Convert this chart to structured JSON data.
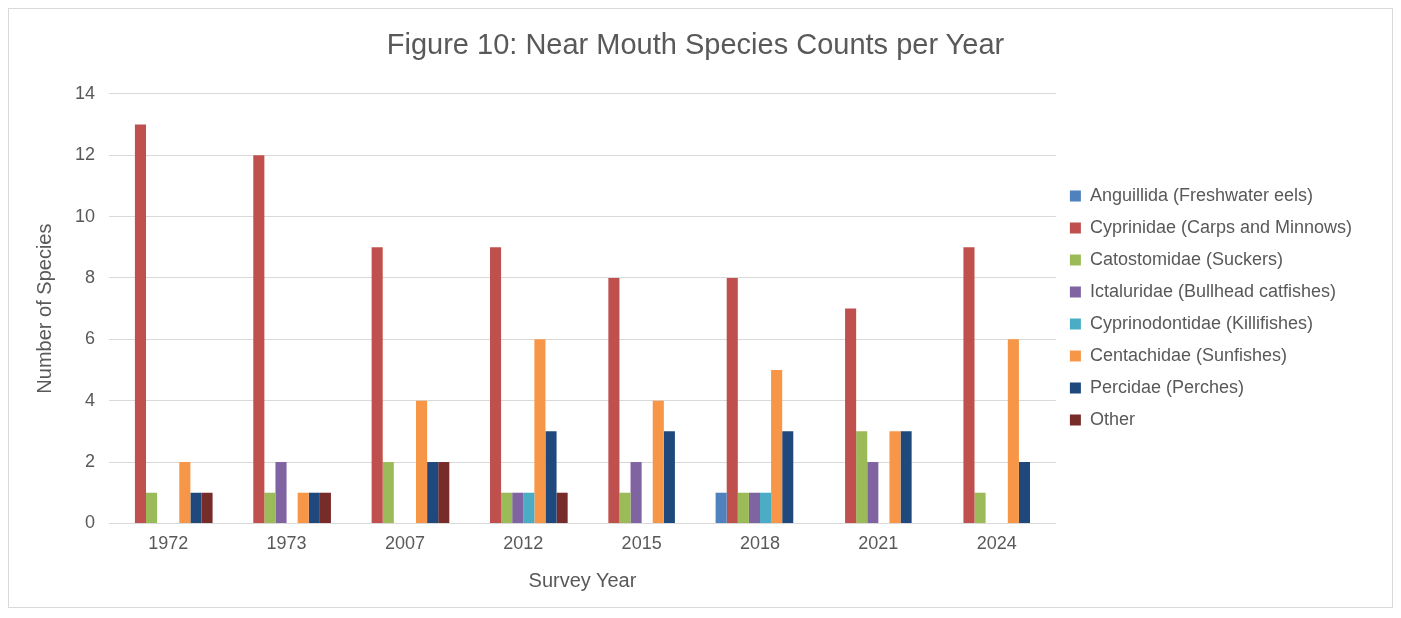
{
  "chart_data": {
    "type": "bar",
    "title": "Figure 10: Near Mouth Species Counts per Year",
    "xlabel": "Survey Year",
    "ylabel": "Number of Species",
    "categories": [
      "1972",
      "1973",
      "2007",
      "2012",
      "2015",
      "2018",
      "2021",
      "2024"
    ],
    "series": [
      {
        "name": "Anguillida (Freshwater eels)",
        "color": "#4f81bd",
        "values": [
          0,
          0,
          0,
          0,
          0,
          1,
          0,
          0
        ]
      },
      {
        "name": "Cyprinidae (Carps and Minnows)",
        "color": "#c0504d",
        "values": [
          13,
          12,
          9,
          9,
          8,
          8,
          7,
          9
        ]
      },
      {
        "name": "Catostomidae (Suckers)",
        "color": "#9bbb59",
        "values": [
          1,
          1,
          2,
          1,
          1,
          1,
          3,
          1
        ]
      },
      {
        "name": "Ictaluridae (Bullhead catfishes)",
        "color": "#8064a2",
        "values": [
          0,
          2,
          0,
          1,
          2,
          1,
          2,
          0
        ]
      },
      {
        "name": "Cyprinodontidae (Killifishes)",
        "color": "#4bacc6",
        "values": [
          0,
          0,
          0,
          1,
          0,
          1,
          0,
          0
        ]
      },
      {
        "name": "Centachidae (Sunfishes)",
        "color": "#f79646",
        "values": [
          2,
          1,
          4,
          6,
          4,
          5,
          3,
          6
        ]
      },
      {
        "name": "Percidae (Perches)",
        "color": "#1f497d",
        "values": [
          1,
          1,
          2,
          3,
          3,
          3,
          3,
          2
        ]
      },
      {
        "name": "Other",
        "color": "#772c2a",
        "values": [
          1,
          1,
          2,
          1,
          0,
          0,
          0,
          0
        ]
      }
    ],
    "ylim": [
      0,
      14
    ],
    "yticks": [
      0,
      2,
      4,
      6,
      8,
      10,
      12,
      14
    ],
    "grid": "y",
    "legend": "right"
  }
}
